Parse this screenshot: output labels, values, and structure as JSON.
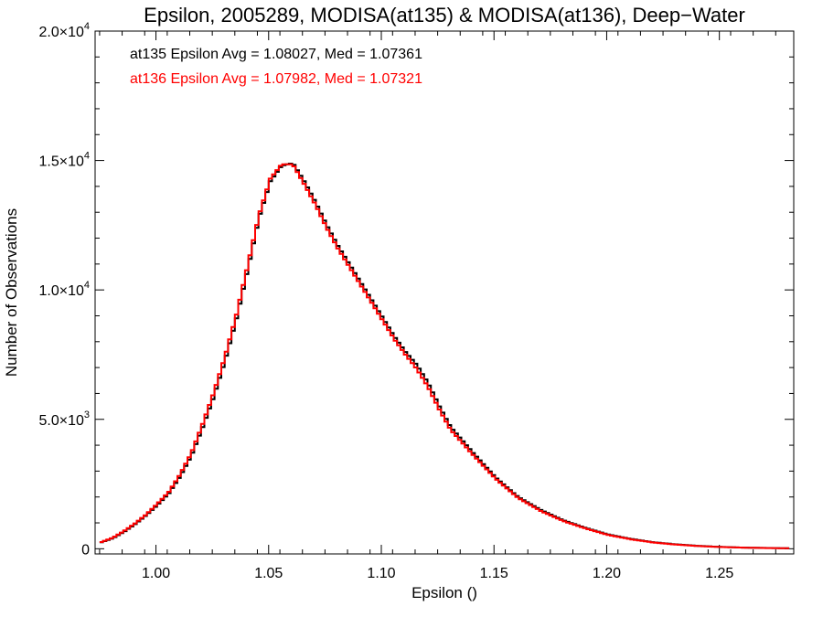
{
  "chart_data": {
    "type": "line",
    "title": "Epsilon, 2005289, MODISA(at135) & MODISA(at136), Deep−Water",
    "xlabel": "Epsilon ()",
    "ylabel": "Number of Observations",
    "xlim": [
      0.973,
      1.283
    ],
    "ylim": [
      -200,
      20000
    ],
    "x_ticks": [
      1.0,
      1.05,
      1.1,
      1.15,
      1.2,
      1.25
    ],
    "x_tick_labels": [
      "1.00",
      "1.05",
      "1.10",
      "1.15",
      "1.20",
      "1.25"
    ],
    "y_ticks": [
      {
        "value": 0,
        "mantissa": "0",
        "exp": ""
      },
      {
        "value": 5000,
        "mantissa": "5.0×10",
        "exp": "3"
      },
      {
        "value": 10000,
        "mantissa": "1.0×10",
        "exp": "4"
      },
      {
        "value": 15000,
        "mantissa": "1.5×10",
        "exp": "4"
      },
      {
        "value": 20000,
        "mantissa": "2.0×10",
        "exp": "4"
      }
    ],
    "annotations": [
      {
        "text": "at135 Epsilon Avg = 1.08027, Med = 1.07361",
        "color": "#000000"
      },
      {
        "text": "at136 Epsilon Avg = 1.07982, Med = 1.07321",
        "color": "#ff0000"
      }
    ],
    "series": [
      {
        "name": "at135",
        "color": "#000000",
        "x": [
          0.975,
          0.98,
          0.985,
          0.99,
          0.995,
          1.0,
          1.005,
          1.01,
          1.015,
          1.02,
          1.025,
          1.03,
          1.035,
          1.04,
          1.045,
          1.05,
          1.055,
          1.06,
          1.065,
          1.07,
          1.075,
          1.08,
          1.085,
          1.09,
          1.095,
          1.1,
          1.105,
          1.11,
          1.115,
          1.12,
          1.125,
          1.13,
          1.14,
          1.15,
          1.16,
          1.17,
          1.18,
          1.19,
          1.2,
          1.21,
          1.22,
          1.23,
          1.24,
          1.25,
          1.26,
          1.27,
          1.28
        ],
        "y": [
          250,
          400,
          650,
          950,
          1300,
          1700,
          2150,
          2800,
          3600,
          4700,
          5900,
          7300,
          8900,
          10800,
          12800,
          14200,
          14800,
          14900,
          14200,
          13400,
          12500,
          11700,
          11000,
          10300,
          9600,
          8900,
          8200,
          7600,
          7100,
          6400,
          5500,
          4700,
          3700,
          2750,
          2000,
          1500,
          1100,
          800,
          550,
          380,
          250,
          170,
          110,
          70,
          45,
          30,
          20
        ]
      },
      {
        "name": "at136",
        "color": "#ff0000",
        "x": [
          0.975,
          0.98,
          0.985,
          0.99,
          0.995,
          1.0,
          1.005,
          1.01,
          1.015,
          1.02,
          1.025,
          1.03,
          1.035,
          1.04,
          1.045,
          1.05,
          1.055,
          1.06,
          1.065,
          1.07,
          1.075,
          1.08,
          1.085,
          1.09,
          1.095,
          1.1,
          1.105,
          1.11,
          1.115,
          1.12,
          1.125,
          1.13,
          1.14,
          1.15,
          1.16,
          1.17,
          1.18,
          1.19,
          1.2,
          1.21,
          1.22,
          1.23,
          1.24,
          1.25,
          1.26,
          1.27,
          1.28
        ],
        "y": [
          260,
          420,
          680,
          980,
          1330,
          1750,
          2200,
          2880,
          3700,
          4820,
          6050,
          7450,
          9050,
          10950,
          12900,
          14300,
          14850,
          14850,
          14100,
          13300,
          12400,
          11600,
          10900,
          10200,
          9500,
          8800,
          8100,
          7500,
          6950,
          6250,
          5380,
          4600,
          3620,
          2700,
          1960,
          1460,
          1070,
          780,
          530,
          365,
          240,
          160,
          105,
          66,
          42,
          28,
          18
        ]
      }
    ]
  }
}
